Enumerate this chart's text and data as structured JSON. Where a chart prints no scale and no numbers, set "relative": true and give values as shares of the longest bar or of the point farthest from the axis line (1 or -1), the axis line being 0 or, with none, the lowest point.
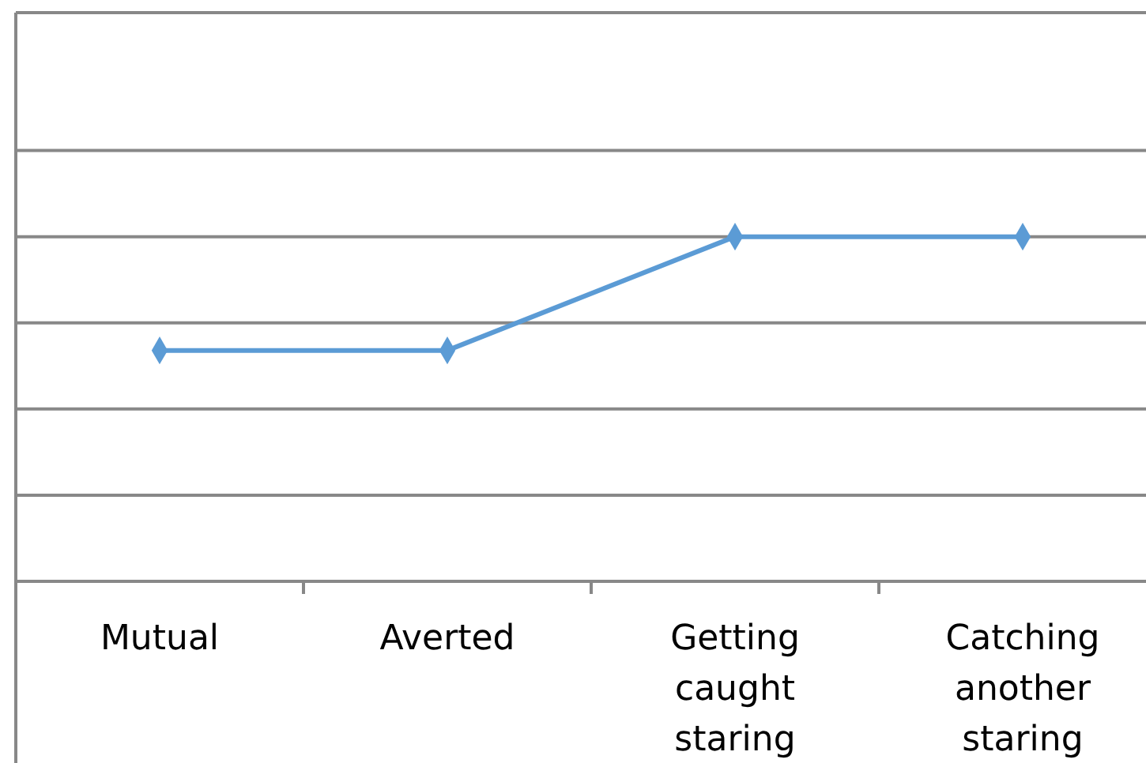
{
  "chart_data": {
    "type": "line",
    "relative": true,
    "categories": [
      "Mutual",
      "Averted",
      "Getting caught staring",
      "Catching another staring"
    ],
    "series": [
      {
        "color": "#5b9bd5",
        "values": [
          0.67,
          0.67,
          1,
          1
        ]
      }
    ],
    "marker": "diamond",
    "grid": "y"
  }
}
